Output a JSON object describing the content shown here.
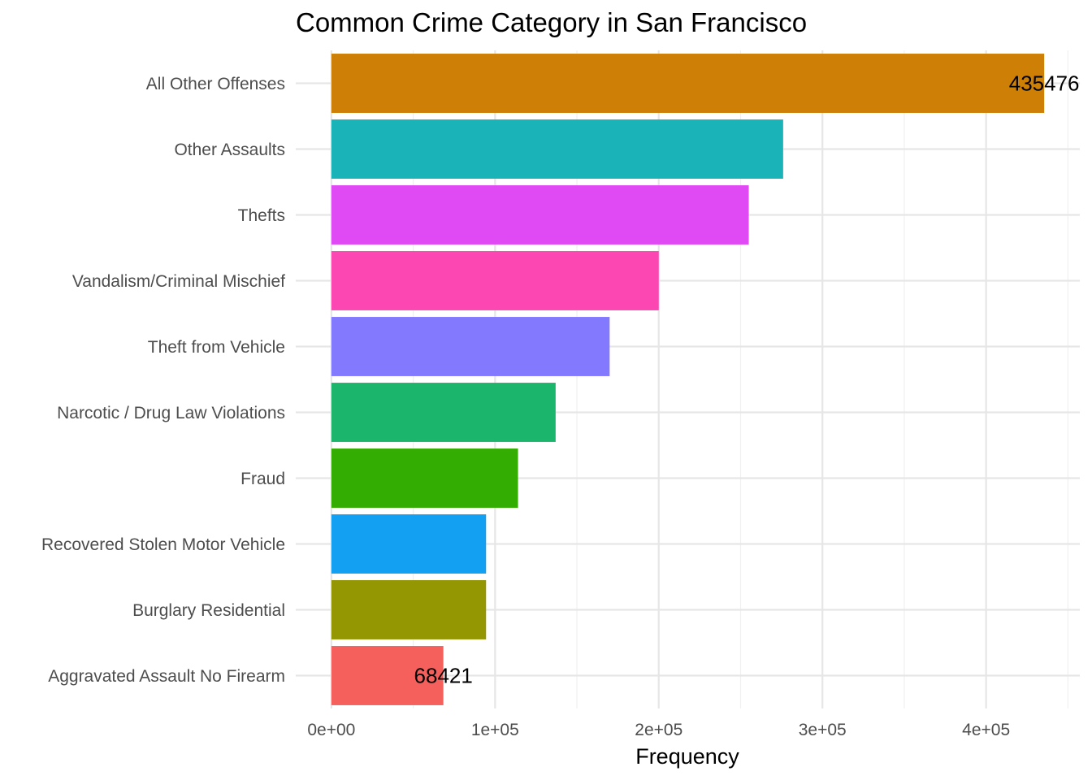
{
  "chart_data": {
    "type": "bar",
    "orientation": "horizontal",
    "title": "Common Crime Category in San Francisco",
    "xlabel": "Frequency",
    "ylabel": "",
    "categories": [
      "All Other Offenses",
      "Other Assaults",
      "Thefts",
      "Vandalism/Criminal Mischief",
      "Theft from Vehicle",
      "Narcotic / Drug Law Violations",
      "Fraud",
      "Recovered Stolen Motor Vehicle",
      "Burglary Residential",
      "Aggravated Assault No Firearm"
    ],
    "values": [
      435476,
      276000,
      255000,
      200000,
      170000,
      137000,
      114000,
      94500,
      94500,
      68421
    ],
    "colors": [
      "#CD7F06",
      "#1AB4B8",
      "#E04AF4",
      "#FC46B1",
      "#8379FF",
      "#1BB66C",
      "#33AD01",
      "#139FF2",
      "#949702",
      "#F5605C"
    ],
    "data_labels": [
      {
        "category": "All Other Offenses",
        "text": "435476"
      },
      {
        "category": "Aggravated Assault No Firearm",
        "text": "68421"
      }
    ],
    "x_ticks": [
      {
        "value": 0,
        "label": "0e+00"
      },
      {
        "value": 100000,
        "label": "1e+05"
      },
      {
        "value": 200000,
        "label": "2e+05"
      },
      {
        "value": 300000,
        "label": "3e+05"
      },
      {
        "value": 400000,
        "label": "4e+05"
      }
    ],
    "xlim": [
      -21774,
      457250
    ],
    "grid": true,
    "legend": "none"
  }
}
